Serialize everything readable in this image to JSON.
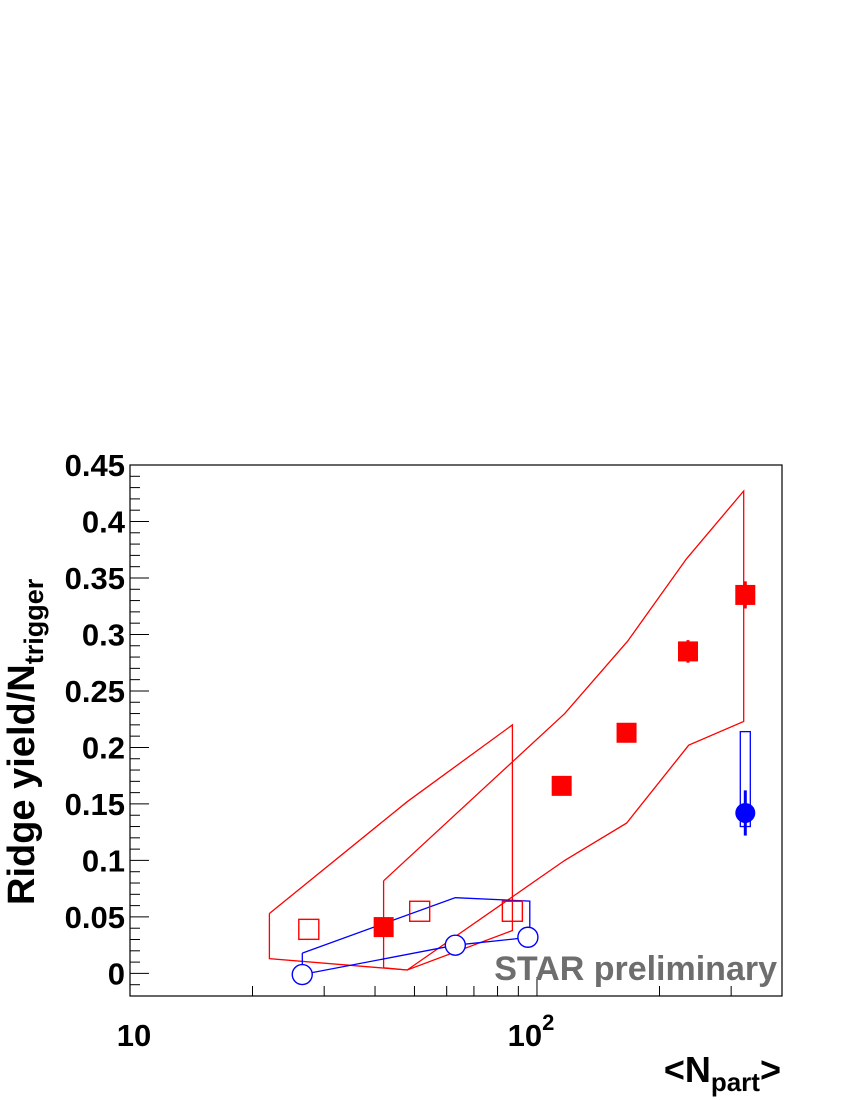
{
  "chart_data": {
    "type": "scatter",
    "xscale": "log",
    "xlim": [
      10,
      400
    ],
    "ylim": [
      -0.02,
      0.45
    ],
    "x_tick_labels": [
      {
        "value": 10,
        "base": "10",
        "exp": ""
      },
      {
        "value": 100,
        "base": "10",
        "exp": "2"
      }
    ],
    "y_ticks": [
      0,
      0.05,
      0.1,
      0.15,
      0.2,
      0.25,
      0.3,
      0.35,
      0.4,
      0.45
    ],
    "y_tick_labels": [
      "0",
      "0.05",
      "0.1",
      "0.15",
      "0.2",
      "0.25",
      "0.3",
      "0.35",
      "0.4",
      "0.45"
    ],
    "xlabel": {
      "main": "<N",
      "sub": "part",
      "end": ">"
    },
    "ylabel": {
      "main": "Ridge yield/N",
      "sub": "trigger"
    },
    "annotation": {
      "text": "STAR preliminary",
      "color": "#6e6e6e"
    },
    "series": [
      {
        "marker": "square-filled",
        "color": "#ff0000",
        "points": [
          {
            "x": 42,
            "y": 0.041
          },
          {
            "x": 115,
            "y": 0.166
          },
          {
            "x": 166,
            "y": 0.213
          },
          {
            "x": 235,
            "y": 0.285,
            "err": 0.01
          },
          {
            "x": 325,
            "y": 0.335,
            "err": 0.012
          }
        ],
        "band": [
          [
            42,
            0.082
          ],
          [
            117,
            0.23
          ],
          [
            167,
            0.294
          ],
          [
            233,
            0.367
          ],
          [
            322,
            0.427
          ],
          [
            322,
            0.223
          ],
          [
            236,
            0.202
          ],
          [
            166,
            0.133
          ],
          [
            117,
            0.1
          ],
          [
            48,
            0.003
          ],
          [
            42,
            0.005
          ],
          [
            42,
            0.082
          ]
        ]
      },
      {
        "marker": "square-open",
        "color": "#ff0000",
        "points": [
          {
            "x": 27.5,
            "y": 0.039
          },
          {
            "x": 51.5,
            "y": 0.055
          },
          {
            "x": 87,
            "y": 0.055
          }
        ],
        "band": [
          [
            22,
            0.053
          ],
          [
            48,
            0.152
          ],
          [
            87,
            0.22
          ],
          [
            87,
            0.038
          ],
          [
            48,
            0.003
          ],
          [
            22,
            0.013
          ],
          [
            22,
            0.053
          ]
        ]
      },
      {
        "marker": "circle-open",
        "color": "#0000ff",
        "points": [
          {
            "x": 26.5,
            "y": -0.001
          },
          {
            "x": 63,
            "y": 0.025
          },
          {
            "x": 95,
            "y": 0.032
          }
        ],
        "band": [
          [
            26.5,
            0.018
          ],
          [
            63,
            0.067
          ],
          [
            96,
            0.064
          ],
          [
            96,
            0.032
          ],
          [
            63,
            0.025
          ],
          [
            26.5,
            -0.001
          ],
          [
            26.5,
            0.018
          ]
        ]
      },
      {
        "marker": "circle-filled",
        "color": "#0000ff",
        "points": [
          {
            "x": 325,
            "y": 0.142,
            "err": 0.02
          }
        ],
        "syst_box": {
          "x": 325,
          "y0": 0.13,
          "y1": 0.214
        }
      }
    ]
  }
}
